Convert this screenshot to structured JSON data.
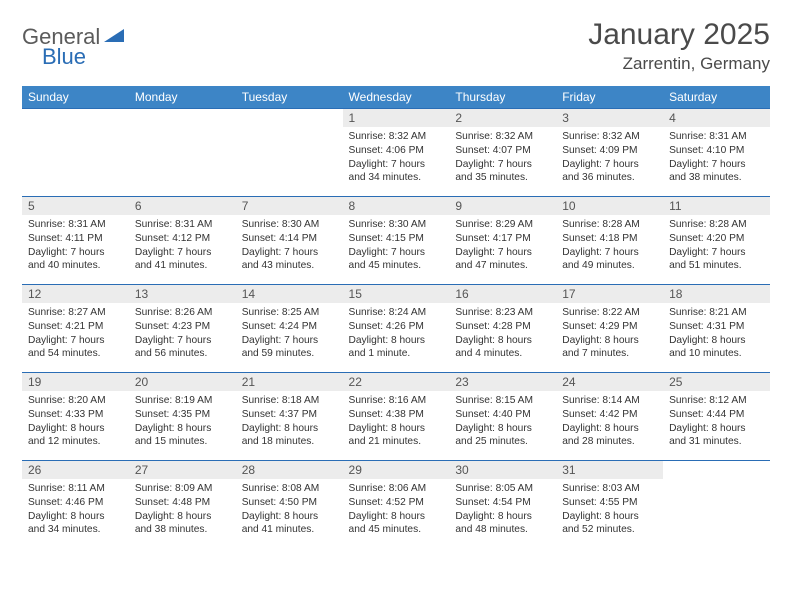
{
  "logo": {
    "general": "General",
    "blue": "Blue"
  },
  "title": "January 2025",
  "location": "Zarrentin, Germany",
  "colors": {
    "header_bg": "#3d85c6",
    "header_text": "#ffffff",
    "border": "#2a6db5",
    "daynum_bg": "#ececec",
    "logo_blue": "#2a6db5",
    "logo_gray": "#5b5b5b"
  },
  "weekdays": [
    "Sunday",
    "Monday",
    "Tuesday",
    "Wednesday",
    "Thursday",
    "Friday",
    "Saturday"
  ],
  "weeks": [
    [
      {
        "n": "",
        "sr": "",
        "ss": "",
        "dl": ""
      },
      {
        "n": "",
        "sr": "",
        "ss": "",
        "dl": ""
      },
      {
        "n": "",
        "sr": "",
        "ss": "",
        "dl": ""
      },
      {
        "n": "1",
        "sr": "Sunrise: 8:32 AM",
        "ss": "Sunset: 4:06 PM",
        "dl": "Daylight: 7 hours and 34 minutes."
      },
      {
        "n": "2",
        "sr": "Sunrise: 8:32 AM",
        "ss": "Sunset: 4:07 PM",
        "dl": "Daylight: 7 hours and 35 minutes."
      },
      {
        "n": "3",
        "sr": "Sunrise: 8:32 AM",
        "ss": "Sunset: 4:09 PM",
        "dl": "Daylight: 7 hours and 36 minutes."
      },
      {
        "n": "4",
        "sr": "Sunrise: 8:31 AM",
        "ss": "Sunset: 4:10 PM",
        "dl": "Daylight: 7 hours and 38 minutes."
      }
    ],
    [
      {
        "n": "5",
        "sr": "Sunrise: 8:31 AM",
        "ss": "Sunset: 4:11 PM",
        "dl": "Daylight: 7 hours and 40 minutes."
      },
      {
        "n": "6",
        "sr": "Sunrise: 8:31 AM",
        "ss": "Sunset: 4:12 PM",
        "dl": "Daylight: 7 hours and 41 minutes."
      },
      {
        "n": "7",
        "sr": "Sunrise: 8:30 AM",
        "ss": "Sunset: 4:14 PM",
        "dl": "Daylight: 7 hours and 43 minutes."
      },
      {
        "n": "8",
        "sr": "Sunrise: 8:30 AM",
        "ss": "Sunset: 4:15 PM",
        "dl": "Daylight: 7 hours and 45 minutes."
      },
      {
        "n": "9",
        "sr": "Sunrise: 8:29 AM",
        "ss": "Sunset: 4:17 PM",
        "dl": "Daylight: 7 hours and 47 minutes."
      },
      {
        "n": "10",
        "sr": "Sunrise: 8:28 AM",
        "ss": "Sunset: 4:18 PM",
        "dl": "Daylight: 7 hours and 49 minutes."
      },
      {
        "n": "11",
        "sr": "Sunrise: 8:28 AM",
        "ss": "Sunset: 4:20 PM",
        "dl": "Daylight: 7 hours and 51 minutes."
      }
    ],
    [
      {
        "n": "12",
        "sr": "Sunrise: 8:27 AM",
        "ss": "Sunset: 4:21 PM",
        "dl": "Daylight: 7 hours and 54 minutes."
      },
      {
        "n": "13",
        "sr": "Sunrise: 8:26 AM",
        "ss": "Sunset: 4:23 PM",
        "dl": "Daylight: 7 hours and 56 minutes."
      },
      {
        "n": "14",
        "sr": "Sunrise: 8:25 AM",
        "ss": "Sunset: 4:24 PM",
        "dl": "Daylight: 7 hours and 59 minutes."
      },
      {
        "n": "15",
        "sr": "Sunrise: 8:24 AM",
        "ss": "Sunset: 4:26 PM",
        "dl": "Daylight: 8 hours and 1 minute."
      },
      {
        "n": "16",
        "sr": "Sunrise: 8:23 AM",
        "ss": "Sunset: 4:28 PM",
        "dl": "Daylight: 8 hours and 4 minutes."
      },
      {
        "n": "17",
        "sr": "Sunrise: 8:22 AM",
        "ss": "Sunset: 4:29 PM",
        "dl": "Daylight: 8 hours and 7 minutes."
      },
      {
        "n": "18",
        "sr": "Sunrise: 8:21 AM",
        "ss": "Sunset: 4:31 PM",
        "dl": "Daylight: 8 hours and 10 minutes."
      }
    ],
    [
      {
        "n": "19",
        "sr": "Sunrise: 8:20 AM",
        "ss": "Sunset: 4:33 PM",
        "dl": "Daylight: 8 hours and 12 minutes."
      },
      {
        "n": "20",
        "sr": "Sunrise: 8:19 AM",
        "ss": "Sunset: 4:35 PM",
        "dl": "Daylight: 8 hours and 15 minutes."
      },
      {
        "n": "21",
        "sr": "Sunrise: 8:18 AM",
        "ss": "Sunset: 4:37 PM",
        "dl": "Daylight: 8 hours and 18 minutes."
      },
      {
        "n": "22",
        "sr": "Sunrise: 8:16 AM",
        "ss": "Sunset: 4:38 PM",
        "dl": "Daylight: 8 hours and 21 minutes."
      },
      {
        "n": "23",
        "sr": "Sunrise: 8:15 AM",
        "ss": "Sunset: 4:40 PM",
        "dl": "Daylight: 8 hours and 25 minutes."
      },
      {
        "n": "24",
        "sr": "Sunrise: 8:14 AM",
        "ss": "Sunset: 4:42 PM",
        "dl": "Daylight: 8 hours and 28 minutes."
      },
      {
        "n": "25",
        "sr": "Sunrise: 8:12 AM",
        "ss": "Sunset: 4:44 PM",
        "dl": "Daylight: 8 hours and 31 minutes."
      }
    ],
    [
      {
        "n": "26",
        "sr": "Sunrise: 8:11 AM",
        "ss": "Sunset: 4:46 PM",
        "dl": "Daylight: 8 hours and 34 minutes."
      },
      {
        "n": "27",
        "sr": "Sunrise: 8:09 AM",
        "ss": "Sunset: 4:48 PM",
        "dl": "Daylight: 8 hours and 38 minutes."
      },
      {
        "n": "28",
        "sr": "Sunrise: 8:08 AM",
        "ss": "Sunset: 4:50 PM",
        "dl": "Daylight: 8 hours and 41 minutes."
      },
      {
        "n": "29",
        "sr": "Sunrise: 8:06 AM",
        "ss": "Sunset: 4:52 PM",
        "dl": "Daylight: 8 hours and 45 minutes."
      },
      {
        "n": "30",
        "sr": "Sunrise: 8:05 AM",
        "ss": "Sunset: 4:54 PM",
        "dl": "Daylight: 8 hours and 48 minutes."
      },
      {
        "n": "31",
        "sr": "Sunrise: 8:03 AM",
        "ss": "Sunset: 4:55 PM",
        "dl": "Daylight: 8 hours and 52 minutes."
      },
      {
        "n": "",
        "sr": "",
        "ss": "",
        "dl": ""
      }
    ]
  ]
}
